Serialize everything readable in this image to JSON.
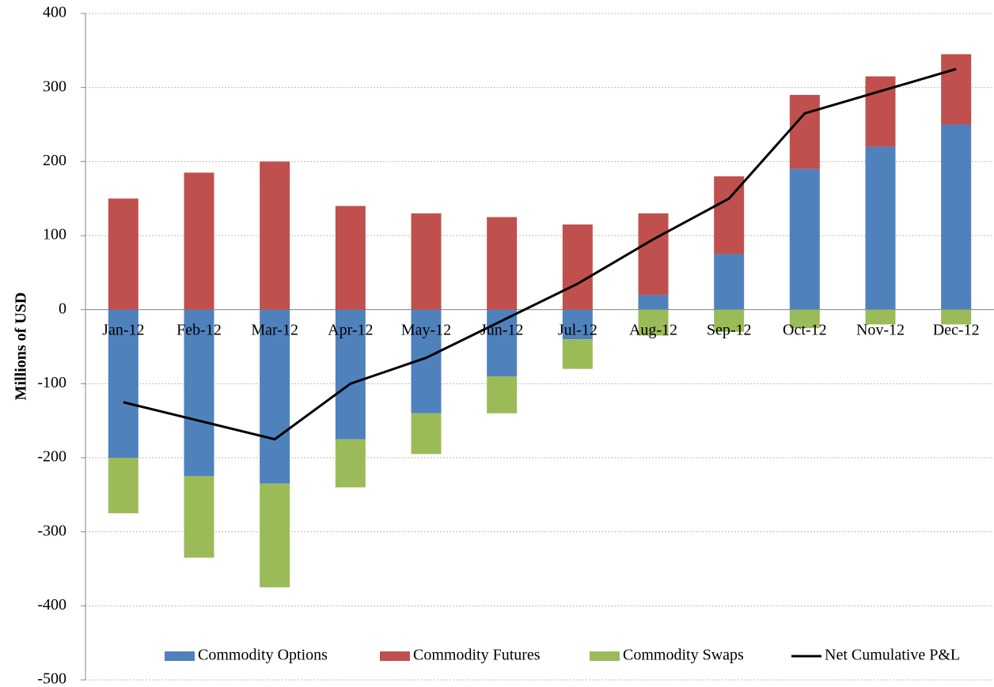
{
  "chart_data": {
    "type": "bar",
    "stacked": true,
    "y_label": "Millions of USD",
    "categories": [
      "Jan-12",
      "Feb-12",
      "Mar-12",
      "Apr-12",
      "May-12",
      "Jun-12",
      "Jul-12",
      "Aug-12",
      "Sep-12",
      "Oct-12",
      "Nov-12",
      "Dec-12"
    ],
    "series": [
      {
        "name": "Commodity Options",
        "color": "#4f81bd",
        "values": [
          -200,
          -225,
          -235,
          -175,
          -140,
          -90,
          -40,
          20,
          75,
          190,
          220,
          250
        ]
      },
      {
        "name": "Commodity Futures",
        "color": "#c0504d",
        "values": [
          150,
          185,
          200,
          140,
          130,
          125,
          115,
          110,
          105,
          100,
          95,
          95
        ]
      },
      {
        "name": "Commodity Swaps",
        "color": "#9bbb59",
        "values": [
          -75,
          -110,
          -140,
          -65,
          -55,
          -50,
          -40,
          -35,
          -30,
          -25,
          -20,
          -20
        ]
      },
      {
        "name": "Net Cumulative P&L",
        "color": "#000000",
        "type": "line",
        "values": [
          -125,
          -150,
          -175,
          -100,
          -65,
          -15,
          35,
          95,
          150,
          265,
          295,
          325
        ]
      }
    ],
    "ylim": [
      -500,
      400
    ],
    "yticks": [
      -500,
      -400,
      -300,
      -200,
      -100,
      0,
      100,
      200,
      300,
      400
    ],
    "grid": true
  }
}
